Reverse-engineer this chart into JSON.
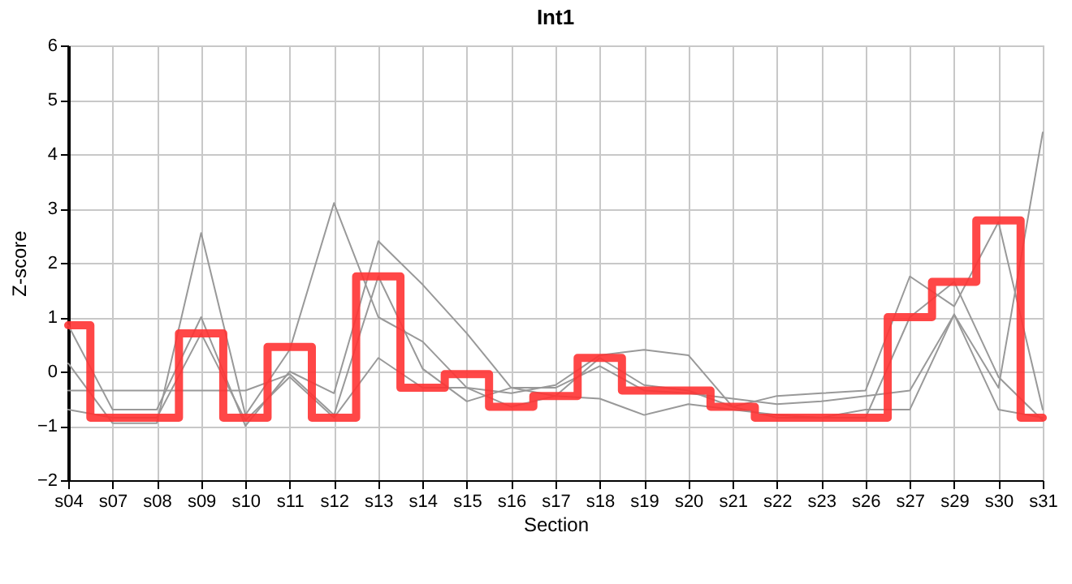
{
  "chart_data": {
    "type": "line",
    "title": "Int1",
    "xlabel": "Section",
    "ylabel": "Z-score",
    "categories": [
      "s04",
      "s07",
      "s08",
      "s09",
      "s10",
      "s11",
      "s12",
      "s13",
      "s14",
      "s15",
      "s16",
      "s17",
      "s18",
      "s19",
      "s20",
      "s21",
      "s22",
      "s23",
      "s26",
      "s27",
      "s29",
      "s30",
      "s31"
    ],
    "ylim": [
      -2,
      6
    ],
    "yticks": [
      -2,
      -1,
      0,
      1,
      2,
      3,
      4,
      5,
      6
    ],
    "grid": true,
    "series": [
      {
        "color": "#999999",
        "values": [
          0.15,
          -0.95,
          -0.95,
          2.55,
          -0.8,
          0.4,
          3.1,
          1.0,
          0.55,
          -0.3,
          -0.4,
          -0.25,
          0.3,
          0.4,
          0.3,
          -0.65,
          -0.45,
          -0.4,
          -0.35,
          1.75,
          1.2,
          2.75,
          -0.7
        ]
      },
      {
        "color": "#999999",
        "values": [
          0.85,
          -0.7,
          -0.7,
          1.0,
          -1.0,
          0.0,
          -0.4,
          2.4,
          1.6,
          0.7,
          -0.3,
          -0.3,
          0.1,
          -0.35,
          -0.4,
          -0.5,
          -0.6,
          -0.55,
          -0.45,
          -0.35,
          1.05,
          -0.3,
          4.4
        ]
      },
      {
        "color": "#999999",
        "values": [
          -0.35,
          -0.35,
          -0.35,
          -0.35,
          -0.35,
          -0.05,
          -0.8,
          1.75,
          0.05,
          -0.55,
          -0.3,
          -0.45,
          -0.5,
          -0.8,
          -0.6,
          -0.7,
          -0.8,
          -0.85,
          -0.7,
          -0.7,
          1.05,
          -0.7,
          -0.85
        ]
      },
      {
        "color": "#999999",
        "values": [
          -0.7,
          -0.85,
          -0.85,
          0.7,
          -0.9,
          -0.1,
          -0.85,
          0.25,
          -0.3,
          -0.3,
          -0.65,
          -0.45,
          0.25,
          -0.25,
          -0.35,
          -0.65,
          -0.85,
          -0.85,
          -0.85,
          1.0,
          1.65,
          -0.1,
          -0.9
        ]
      },
      {
        "type": "step",
        "color": "#ff3333",
        "values": [
          0.85,
          -0.85,
          -0.85,
          0.7,
          -0.85,
          0.45,
          -0.85,
          1.75,
          -0.3,
          -0.05,
          -0.65,
          -0.45,
          0.25,
          -0.35,
          -0.35,
          -0.65,
          -0.85,
          -0.85,
          -0.85,
          1.0,
          1.65,
          2.78,
          -0.85
        ]
      }
    ]
  }
}
